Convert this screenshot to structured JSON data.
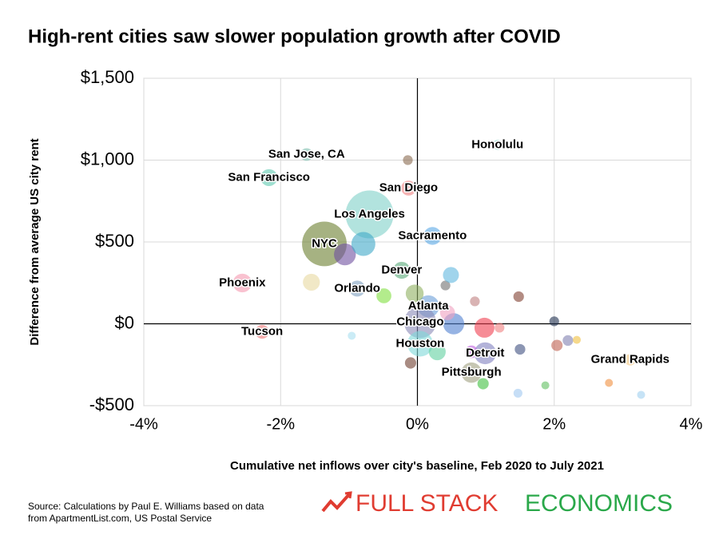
{
  "chart_data": {
    "type": "scatter",
    "title": "High-rent cities saw slower population growth after COVID",
    "x_label": "Cumulative net inflows over city's baseline, Feb 2020 to July 2021",
    "y_label": "Difference from average US city rent",
    "xlim": [
      -4,
      4
    ],
    "ylim": [
      -500,
      1500
    ],
    "xticks": [
      {
        "value": -4,
        "label": "-4%"
      },
      {
        "value": -2,
        "label": "-2%"
      },
      {
        "value": 0,
        "label": "0%"
      },
      {
        "value": 2,
        "label": "2%"
      },
      {
        "value": 4,
        "label": "4%"
      }
    ],
    "yticks": [
      {
        "value": -500,
        "label": "-$500"
      },
      {
        "value": 0,
        "label": "$0"
      },
      {
        "value": 500,
        "label": "$500"
      },
      {
        "value": 1000,
        "label": "$1,000"
      },
      {
        "value": 1500,
        "label": "$1,500"
      }
    ],
    "grid": true,
    "labels": [
      "San Jose, CA",
      "San Francisco",
      "Honolulu",
      "San Diego",
      "Los Angeles",
      "NYC",
      "Sacramento",
      "Denver",
      "Phoenix",
      "Orlando",
      "Atlanta",
      "Chicago",
      "Tucson",
      "Houston",
      "Detroit",
      "Grand Rapids",
      "Pittsburgh",
      null,
      null,
      null,
      null,
      null,
      null,
      null,
      null,
      null,
      null,
      null,
      null,
      null,
      null,
      null,
      null,
      null,
      null,
      null,
      null,
      null,
      null,
      null,
      null,
      null,
      null,
      null,
      null
    ],
    "x": [
      -1.62,
      -2.17,
      1.17,
      -0.13,
      -0.7,
      -1.36,
      0.22,
      -0.23,
      -2.56,
      -0.88,
      0.16,
      0.04,
      -2.27,
      0.04,
      0.99,
      3.11,
      0.79,
      -0.14,
      -0.96,
      -1.06,
      -0.79,
      -1.55,
      -0.04,
      0.41,
      0.49,
      1.48,
      0.84,
      2.0,
      2.04,
      2.2,
      2.33,
      1.5,
      0.98,
      1.2,
      -0.1,
      0.96,
      1.47,
      1.87,
      2.8,
      3.27,
      0.53,
      0.29,
      -0.49,
      0.79,
      0.44
    ],
    "y": [
      1034,
      893,
      1093,
      829,
      668,
      488,
      537,
      327,
      249,
      215,
      107,
      10,
      -49,
      -122,
      -180,
      -220,
      -298,
      1000,
      -73,
      424,
      488,
      254,
      185,
      234,
      298,
      166,
      137,
      15,
      -132,
      -102,
      -98,
      -156,
      -24,
      -24,
      -239,
      -366,
      -424,
      -376,
      -361,
      -434,
      0,
      -171,
      171,
      -171,
      68
    ],
    "sizes": [
      10,
      18,
      6,
      14,
      144,
      125,
      20,
      18,
      22,
      16,
      30,
      64,
      12,
      41,
      30,
      8,
      26,
      6,
      4,
      30,
      36,
      18,
      20,
      6,
      16,
      7,
      6,
      6,
      8,
      7,
      4,
      7,
      25,
      6,
      8,
      8,
      5,
      4,
      4,
      4,
      28,
      18,
      14,
      10,
      14
    ],
    "colors": [
      "#7fbfaf",
      "#5fc9b0",
      "#7fd6c7",
      "#f08080",
      "#7fd0c8",
      "#6b7f2f",
      "#5aa8e6",
      "#5aaa7a",
      "#f59ab0",
      "#7fa0c0",
      "#6a9fd8",
      "#8a8ab8",
      "#f07878",
      "#7fd8d8",
      "#8080c0",
      "#f5c880",
      "#a0a080",
      "#8a6a50",
      "#a8e0f0",
      "#7050a0",
      "#40a8c8",
      "#e8d8a0",
      "#90b060",
      "#707070",
      "#60b8e0",
      "#804030",
      "#c08080",
      "#203050",
      "#c06050",
      "#8080b0",
      "#f0c040",
      "#405080",
      "#f04050",
      "#f08080",
      "#704030",
      "#40c040",
      "#a0c8f0",
      "#60c060",
      "#f09040",
      "#a0d0f0",
      "#5080d0",
      "#60d0a0",
      "#80e040",
      "#c060e0",
      "#f0a0c0"
    ],
    "source": [
      "Source: Calculations by Paul E. Williams based on data",
      "from ApartmentList.com, US Postal Service"
    ],
    "brand": [
      "FULL STACK",
      "ECONOMICS"
    ]
  }
}
